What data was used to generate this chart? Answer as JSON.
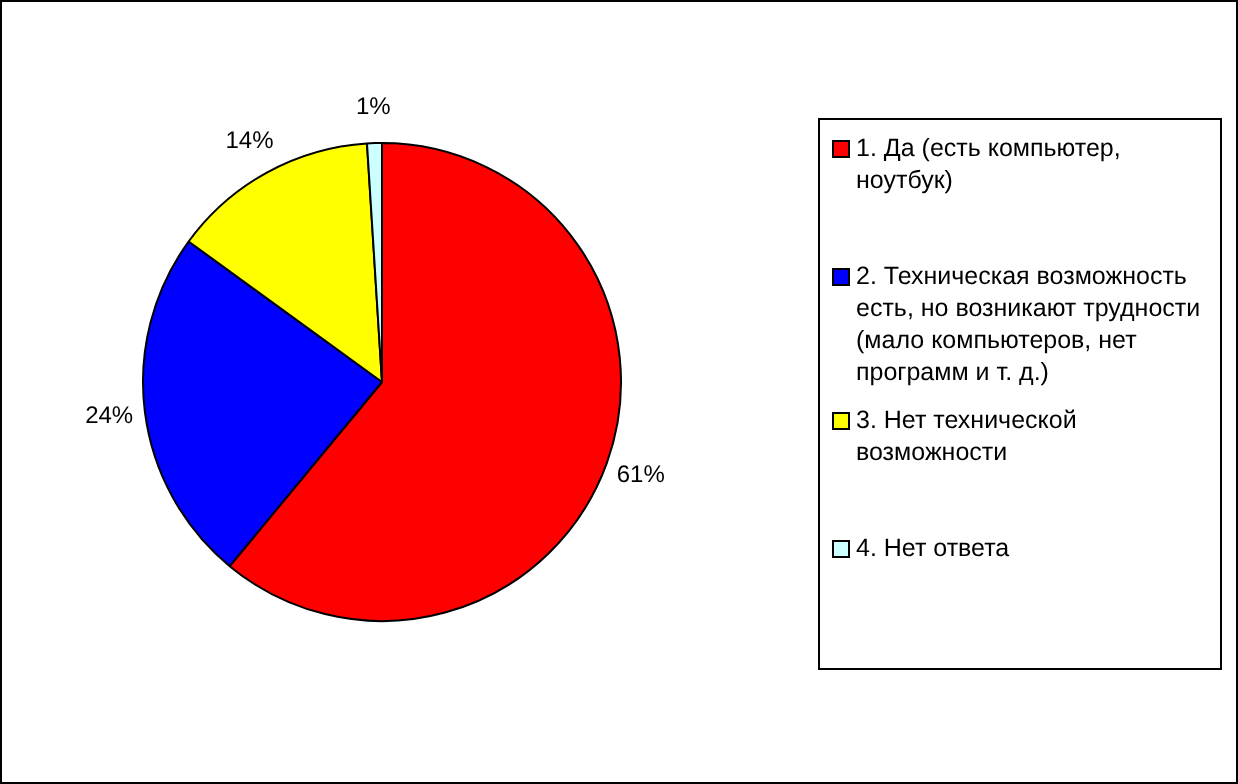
{
  "chart_data": {
    "type": "pie",
    "categories": [
      "1. Да (есть компьютер, ноутбук)",
      "2. Техническая возможность есть, но возникают трудности (мало компьютеров, нет программ и т. д.)",
      "3. Нет технической возможности",
      "4. Нет ответа"
    ],
    "values": [
      61,
      24,
      14,
      1
    ],
    "colors": [
      "#ff0000",
      "#0000ff",
      "#ffff00",
      "#ccffff"
    ],
    "value_labels": [
      "61%",
      "24%",
      "14%",
      "1%"
    ],
    "legend": "right"
  }
}
